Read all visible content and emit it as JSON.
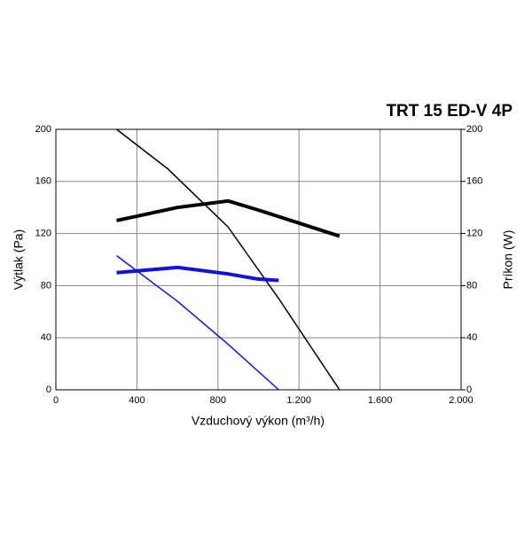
{
  "chart_data": {
    "type": "line",
    "title": "TRT 15 ED-V 4P",
    "x_label": "Vzduchový výkon (m³/h)",
    "y_label": "Výtlak (Pa)",
    "y2_label": "Príkon (W)",
    "xlim": [
      0,
      2000
    ],
    "xticks": [
      0,
      400,
      800,
      {
        "value": 1200,
        "label": "1.200"
      },
      {
        "value": 1600,
        "label": "1.600"
      },
      {
        "value": 2000,
        "label": "2.000"
      }
    ],
    "ylim": [
      0,
      200
    ],
    "yticks": [
      0,
      40,
      80,
      120,
      160,
      200
    ],
    "y2lim": [
      0,
      200
    ],
    "y2ticks": [
      0,
      40,
      80,
      120,
      160,
      200
    ],
    "grid": true,
    "series": [
      {
        "color": "#000000",
        "width": 1.5,
        "x": [
          300,
          550,
          850,
          1100,
          1400
        ],
        "values": [
          200,
          170,
          125,
          70,
          0
        ]
      },
      {
        "color": "#000000",
        "width": 4,
        "axis": "y2",
        "x": [
          300,
          600,
          850,
          1000,
          1200,
          1300,
          1400
        ],
        "values": [
          130,
          140,
          145,
          138,
          128,
          123,
          118
        ]
      },
      {
        "color": "#1010e0",
        "width": 1.5,
        "x": [
          300,
          600,
          850,
          1100
        ],
        "values": [
          103,
          68,
          35,
          0
        ]
      },
      {
        "color": "#1010e0",
        "width": 4,
        "axis": "y2",
        "x": [
          300,
          600,
          850,
          1000,
          1100
        ],
        "values": [
          90,
          94,
          89,
          85,
          84
        ]
      }
    ]
  }
}
